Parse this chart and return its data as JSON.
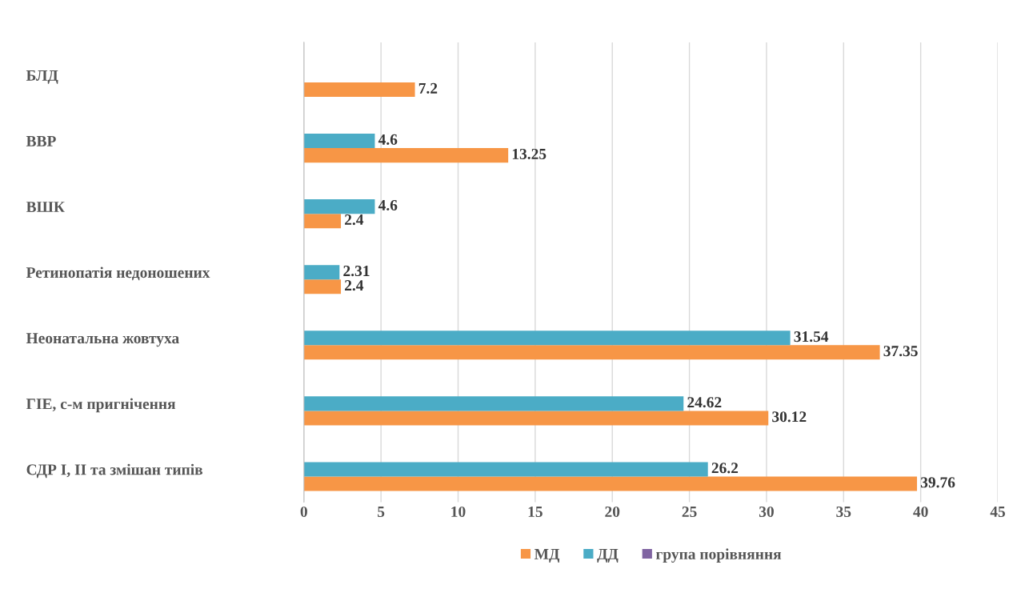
{
  "chart_data": {
    "type": "bar",
    "orientation": "horizontal",
    "categories": [
      "БЛД",
      "ВВР",
      "ВШК",
      "Ретинопатія недоношених",
      "Неонатальна жовтуха",
      "ГІЕ, с-м пригнічення",
      "СДР І, ІІ та змішан типів"
    ],
    "series": [
      {
        "name": "МД",
        "color": "#f79646",
        "values": [
          7.2,
          13.25,
          2.4,
          2.4,
          37.35,
          30.12,
          39.76
        ]
      },
      {
        "name": "ДД",
        "color": "#4bacc6",
        "values": [
          null,
          4.6,
          4.6,
          2.31,
          31.54,
          24.62,
          26.2
        ]
      },
      {
        "name": "група порівняння",
        "color": "#8064a2",
        "values": [
          null,
          null,
          null,
          null,
          null,
          null,
          null
        ]
      }
    ],
    "xlim": [
      0,
      45
    ],
    "xticks": [
      0,
      5,
      10,
      15,
      20,
      25,
      30,
      35,
      40,
      45
    ],
    "grid": "x",
    "legend": "bottom",
    "data_labels": true
  }
}
